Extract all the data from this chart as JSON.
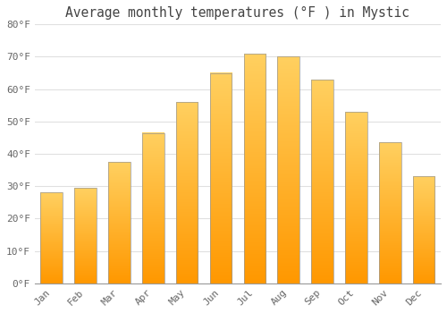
{
  "title": "Average monthly temperatures (°F ) in Mystic",
  "months": [
    "Jan",
    "Feb",
    "Mar",
    "Apr",
    "May",
    "Jun",
    "Jul",
    "Aug",
    "Sep",
    "Oct",
    "Nov",
    "Dec"
  ],
  "values": [
    28,
    29.5,
    37.5,
    46.5,
    56,
    65,
    71,
    70,
    63,
    53,
    43.5,
    33
  ],
  "bar_color_top": "#FFC020",
  "bar_color_bottom": "#FFA000",
  "bar_edge_color": "#999999",
  "background_color": "#FFFFFF",
  "grid_color": "#E0E0E0",
  "tick_label_color": "#666666",
  "title_color": "#444444",
  "ylim": [
    0,
    80
  ],
  "yticks": [
    0,
    10,
    20,
    30,
    40,
    50,
    60,
    70,
    80
  ],
  "ytick_labels": [
    "0°F",
    "10°F",
    "20°F",
    "30°F",
    "40°F",
    "50°F",
    "60°F",
    "70°F",
    "80°F"
  ],
  "title_fontsize": 10.5,
  "tick_fontsize": 8,
  "bar_width": 0.65,
  "gradient_top": "#FFD060",
  "gradient_bottom": "#FF9800"
}
